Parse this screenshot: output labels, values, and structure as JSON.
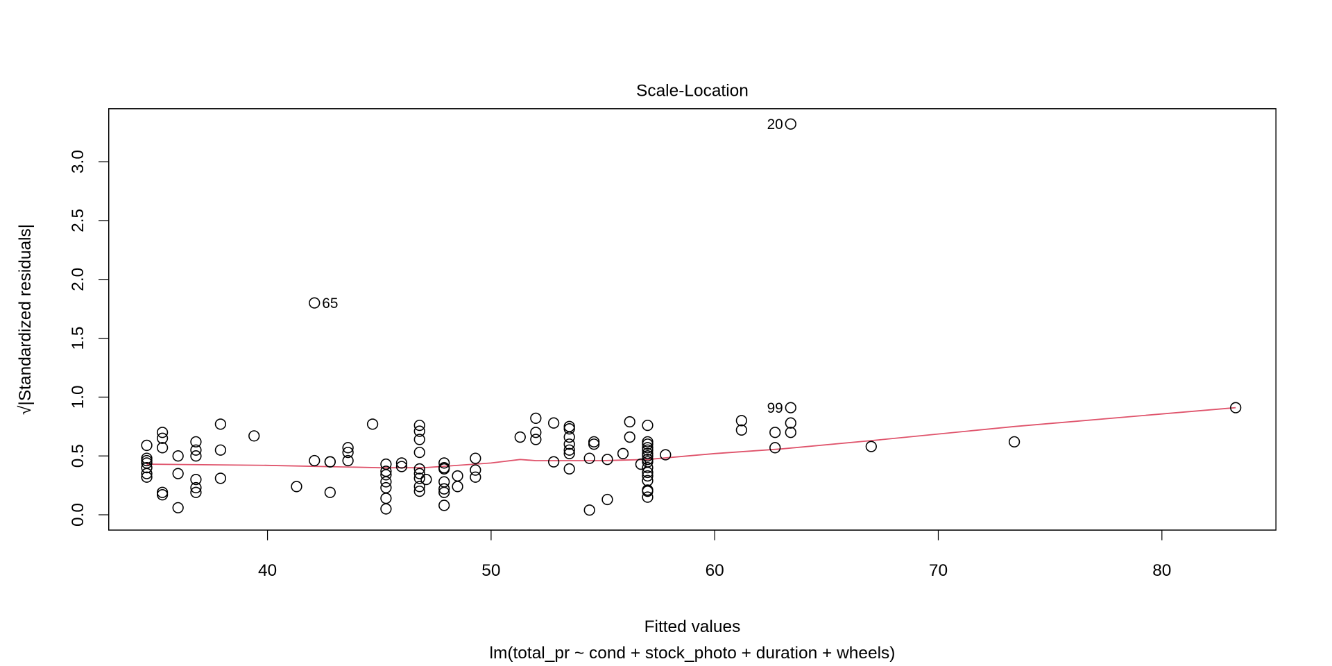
{
  "chart_data": {
    "type": "scatter",
    "title": "Scale-Location",
    "xlabel": "Fitted values",
    "subtitle": "lm(total_pr ~ cond + stock_photo + duration + wheels)",
    "ylabel": "√|Standardized residuals|",
    "ylabel_sqrt": "√",
    "ylabel_text": "|Standardized residuals|",
    "xlim": [
      32.9,
      85.1
    ],
    "ylim": [
      -0.13,
      3.45
    ],
    "xticks": [
      40,
      50,
      60,
      70,
      80
    ],
    "xtick_labels": [
      "40",
      "50",
      "60",
      "70",
      "80"
    ],
    "yticks": [
      0.0,
      0.5,
      1.0,
      1.5,
      2.0,
      2.5,
      3.0
    ],
    "ytick_labels": [
      "0.0",
      "0.5",
      "1.0",
      "1.5",
      "2.0",
      "2.5",
      "3.0"
    ],
    "grid": false,
    "colors": {
      "points": "#000000",
      "smooth": "#DF536B"
    },
    "groups": [
      {
        "x": 34.6,
        "y": [
          0.59,
          0.48,
          0.46,
          0.44,
          0.4,
          0.35,
          0.32
        ]
      },
      {
        "x": 35.3,
        "y": [
          0.7,
          0.65,
          0.57,
          0.19,
          0.17
        ]
      },
      {
        "x": 36.0,
        "y": [
          0.5,
          0.35,
          0.06
        ]
      },
      {
        "x": 36.8,
        "y": [
          0.62,
          0.55,
          0.5,
          0.3,
          0.23,
          0.19
        ]
      },
      {
        "x": 37.9,
        "y": [
          0.77,
          0.55,
          0.31
        ]
      },
      {
        "x": 39.4,
        "y": [
          0.67
        ]
      },
      {
        "x": 41.3,
        "y": [
          0.24
        ]
      },
      {
        "x": 42.1,
        "y": [
          0.46
        ]
      },
      {
        "x": 42.8,
        "y": [
          0.45,
          0.45,
          0.19
        ]
      },
      {
        "x": 43.6,
        "y": [
          0.57,
          0.53,
          0.46
        ]
      },
      {
        "x": 44.7,
        "y": [
          0.77
        ]
      },
      {
        "x": 45.3,
        "y": [
          0.43,
          0.37,
          0.34,
          0.28,
          0.23,
          0.14,
          0.05
        ]
      },
      {
        "x": 46.0,
        "y": [
          0.44,
          0.41
        ]
      },
      {
        "x": 46.8,
        "y": [
          0.76,
          0.71,
          0.64,
          0.53,
          0.39,
          0.35,
          0.31,
          0.24,
          0.2
        ]
      },
      {
        "x": 47.1,
        "y": [
          0.3
        ]
      },
      {
        "x": 47.9,
        "y": [
          0.44,
          0.4,
          0.39,
          0.28,
          0.22,
          0.19,
          0.08
        ]
      },
      {
        "x": 48.5,
        "y": [
          0.33,
          0.24
        ]
      },
      {
        "x": 49.3,
        "y": [
          0.48,
          0.38,
          0.32
        ]
      },
      {
        "x": 51.3,
        "y": [
          0.66
        ]
      },
      {
        "x": 52.0,
        "y": [
          0.82,
          0.7,
          0.64
        ]
      },
      {
        "x": 52.8,
        "y": [
          0.78,
          0.45
        ]
      },
      {
        "x": 53.5,
        "y": [
          0.75,
          0.73,
          0.66,
          0.6,
          0.55,
          0.52,
          0.39
        ]
      },
      {
        "x": 54.4,
        "y": [
          0.48,
          0.04
        ]
      },
      {
        "x": 54.6,
        "y": [
          0.62,
          0.6
        ]
      },
      {
        "x": 55.2,
        "y": [
          0.47,
          0.13
        ]
      },
      {
        "x": 55.9,
        "y": [
          0.52
        ]
      },
      {
        "x": 56.2,
        "y": [
          0.79,
          0.66
        ]
      },
      {
        "x": 56.7,
        "y": [
          0.43
        ]
      },
      {
        "x": 57.0,
        "y": [
          0.76,
          0.62,
          0.6,
          0.57,
          0.55,
          0.52,
          0.5,
          0.47,
          0.45,
          0.4,
          0.36,
          0.33,
          0.29,
          0.21,
          0.2,
          0.15
        ]
      },
      {
        "x": 57.8,
        "y": [
          0.51
        ]
      },
      {
        "x": 61.2,
        "y": [
          0.8,
          0.72
        ]
      },
      {
        "x": 62.7,
        "y": [
          0.7,
          0.57
        ]
      },
      {
        "x": 63.4,
        "y": [
          0.78,
          0.7
        ]
      },
      {
        "x": 67.0,
        "y": [
          0.58
        ]
      },
      {
        "x": 73.4,
        "y": [
          0.62
        ]
      },
      {
        "x": 83.3,
        "y": [
          0.91
        ]
      }
    ],
    "labeled_points": [
      {
        "label": "20",
        "x": 63.4,
        "y": 3.32,
        "side": "left"
      },
      {
        "label": "65",
        "x": 42.1,
        "y": 1.8,
        "side": "right"
      },
      {
        "label": "99",
        "x": 63.4,
        "y": 0.91,
        "side": "left"
      }
    ],
    "smooth_line": {
      "x": [
        34.6,
        40,
        45,
        47,
        50,
        51.3,
        52,
        55,
        57,
        60,
        63,
        67,
        73.4,
        83.3
      ],
      "y": [
        0.43,
        0.42,
        0.4,
        0.4,
        0.44,
        0.47,
        0.46,
        0.46,
        0.47,
        0.52,
        0.56,
        0.63,
        0.75,
        0.91
      ]
    }
  }
}
